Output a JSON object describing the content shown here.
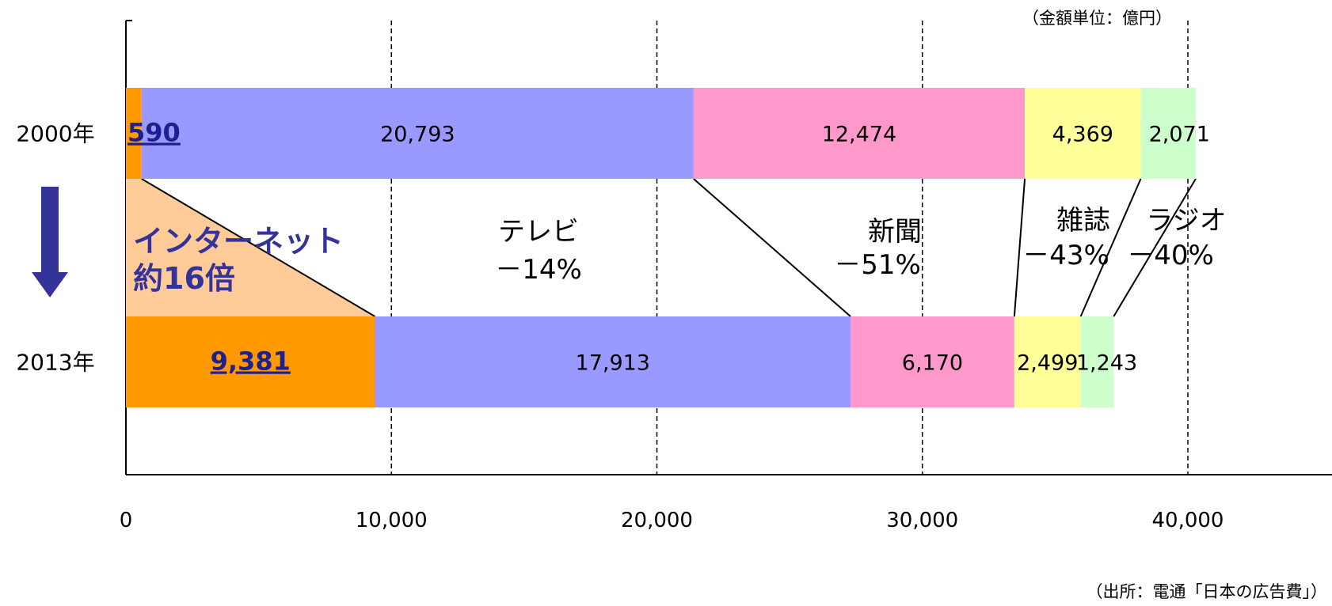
{
  "unit_note": "（金額単位：億円）",
  "source_note": "（出所：電通「日本の広告費」）",
  "callout": {
    "line1": "インターネット",
    "line2": "約16倍"
  },
  "media": [
    {
      "name": "インターネット",
      "color": "#ff9900"
    },
    {
      "name": "テレビ",
      "color": "#9999ff",
      "change": "－14%"
    },
    {
      "name": "新聞",
      "color": "#ff99cc",
      "change": "－51%"
    },
    {
      "name": "雑誌",
      "color": "#ffff99",
      "change": "－43%"
    },
    {
      "name": "ラジオ",
      "color": "#ccffcc",
      "change": "－40%"
    }
  ],
  "chart_data": {
    "type": "bar",
    "orientation": "horizontal",
    "stacked": true,
    "categories": [
      "2000年",
      "2013年"
    ],
    "series": [
      {
        "name": "インターネット",
        "values": [
          590,
          9381
        ],
        "labels": [
          "590",
          "9,381"
        ]
      },
      {
        "name": "テレビ",
        "values": [
          20793,
          17913
        ],
        "labels": [
          "20,793",
          "17,913"
        ]
      },
      {
        "name": "新聞",
        "values": [
          12474,
          6170
        ],
        "labels": [
          "12,474",
          "6,170"
        ]
      },
      {
        "name": "雑誌",
        "values": [
          4369,
          2499
        ],
        "labels": [
          "4,369",
          "2,499"
        ]
      },
      {
        "name": "ラジオ",
        "values": [
          2071,
          1243
        ],
        "labels": [
          "2,071",
          "1,243"
        ]
      }
    ],
    "xlim": [
      0,
      40000
    ],
    "xticks": [
      0,
      10000,
      20000,
      30000,
      40000
    ],
    "xtick_labels": [
      "0",
      "10,000",
      "20,000",
      "30,000",
      "40,000"
    ],
    "grid": "vertical dashed",
    "legend": "none (labels between bars)"
  }
}
